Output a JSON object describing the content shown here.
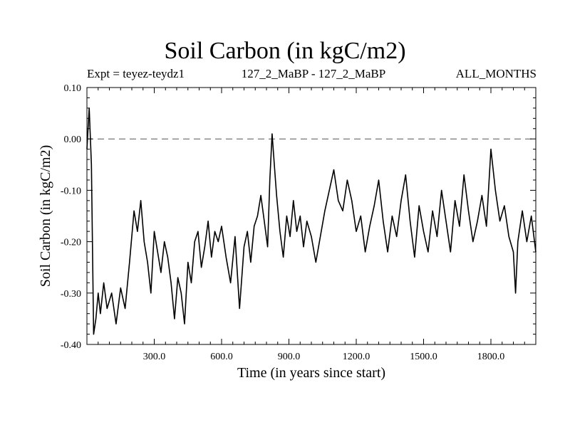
{
  "chart_data": {
    "type": "line",
    "title": "Soil Carbon (in kgC/m2)",
    "subtitle_left": "Expt = teyez-teydz1",
    "subtitle_center": "127_2_MaBP - 127_2_MaBP",
    "subtitle_right": "ALL_MONTHS",
    "xlabel": "Time (in years since start)",
    "ylabel": "Soil Carbon (in kgC/m2)",
    "xlim": [
      0,
      2000
    ],
    "ylim": [
      -0.4,
      0.1
    ],
    "x_ticks": [
      300,
      600,
      900,
      1200,
      1500,
      1800
    ],
    "x_tick_labels": [
      "300.0",
      "600.0",
      "900.0",
      "1200.0",
      "1500.0",
      "1800.0"
    ],
    "y_ticks": [
      0.1,
      0.0,
      -0.1,
      -0.2,
      -0.3,
      -0.4
    ],
    "y_tick_labels": [
      "0.10",
      "0.00",
      "-0.10",
      "-0.20",
      "-0.30",
      "-0.40"
    ],
    "reference_line": 0.0,
    "series": [
      {
        "name": "Soil Carbon",
        "x": [
          0,
          10,
          20,
          30,
          40,
          50,
          60,
          75,
          90,
          110,
          130,
          150,
          170,
          190,
          210,
          225,
          240,
          255,
          270,
          285,
          300,
          315,
          330,
          345,
          360,
          375,
          390,
          405,
          420,
          435,
          450,
          465,
          480,
          495,
          510,
          525,
          540,
          555,
          570,
          585,
          600,
          620,
          640,
          660,
          680,
          700,
          715,
          730,
          745,
          760,
          775,
          790,
          805,
          815,
          825,
          835,
          845,
          860,
          875,
          890,
          905,
          920,
          935,
          950,
          965,
          980,
          1000,
          1020,
          1040,
          1060,
          1080,
          1100,
          1120,
          1140,
          1160,
          1180,
          1200,
          1220,
          1240,
          1260,
          1280,
          1300,
          1320,
          1340,
          1360,
          1380,
          1400,
          1420,
          1440,
          1460,
          1480,
          1500,
          1520,
          1540,
          1560,
          1580,
          1600,
          1620,
          1640,
          1660,
          1680,
          1700,
          1720,
          1740,
          1760,
          1780,
          1800,
          1820,
          1840,
          1860,
          1880,
          1900,
          1910,
          1920,
          1940,
          1960,
          1980,
          2000
        ],
        "values": [
          -0.02,
          0.06,
          -0.05,
          -0.38,
          -0.35,
          -0.3,
          -0.34,
          -0.28,
          -0.33,
          -0.3,
          -0.36,
          -0.29,
          -0.33,
          -0.24,
          -0.14,
          -0.18,
          -0.12,
          -0.2,
          -0.24,
          -0.3,
          -0.18,
          -0.22,
          -0.26,
          -0.2,
          -0.23,
          -0.28,
          -0.35,
          -0.27,
          -0.3,
          -0.36,
          -0.24,
          -0.28,
          -0.2,
          -0.18,
          -0.25,
          -0.21,
          -0.16,
          -0.23,
          -0.18,
          -0.2,
          -0.17,
          -0.23,
          -0.28,
          -0.19,
          -0.33,
          -0.21,
          -0.18,
          -0.24,
          -0.17,
          -0.15,
          -0.11,
          -0.16,
          -0.21,
          -0.08,
          0.01,
          -0.05,
          -0.11,
          -0.18,
          -0.23,
          -0.15,
          -0.19,
          -0.12,
          -0.18,
          -0.15,
          -0.21,
          -0.16,
          -0.19,
          -0.24,
          -0.19,
          -0.14,
          -0.1,
          -0.06,
          -0.12,
          -0.14,
          -0.08,
          -0.12,
          -0.18,
          -0.15,
          -0.22,
          -0.17,
          -0.13,
          -0.08,
          -0.16,
          -0.22,
          -0.15,
          -0.19,
          -0.12,
          -0.07,
          -0.16,
          -0.23,
          -0.13,
          -0.18,
          -0.22,
          -0.14,
          -0.19,
          -0.1,
          -0.16,
          -0.22,
          -0.12,
          -0.17,
          -0.07,
          -0.14,
          -0.2,
          -0.16,
          -0.11,
          -0.17,
          -0.02,
          -0.1,
          -0.16,
          -0.13,
          -0.19,
          -0.22,
          -0.3,
          -0.2,
          -0.14,
          -0.2,
          -0.15,
          -0.22
        ]
      }
    ]
  }
}
